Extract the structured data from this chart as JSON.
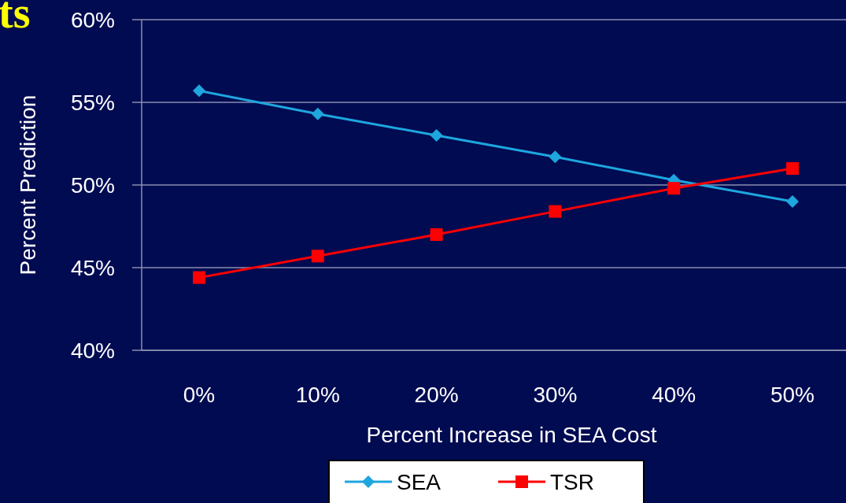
{
  "chart_data": {
    "type": "line",
    "title": "ts",
    "xlabel": "Percent Increase in SEA Cost",
    "ylabel": "Percent Prediction",
    "categories": [
      "0%",
      "10%",
      "20%",
      "30%",
      "40%",
      "50%"
    ],
    "series": [
      {
        "name": "SEA",
        "color": "#1ea6de",
        "marker": "diamond",
        "values": [
          55.7,
          54.3,
          53.0,
          51.7,
          50.3,
          49.0
        ]
      },
      {
        "name": "TSR",
        "color": "#ff0000",
        "marker": "square",
        "values": [
          44.4,
          45.7,
          47.0,
          48.4,
          49.8,
          51.0
        ]
      }
    ],
    "ylim": [
      40,
      60
    ],
    "yticks": [
      {
        "value": 40,
        "label": "40%"
      },
      {
        "value": 45,
        "label": "45%"
      },
      {
        "value": 50,
        "label": "50%"
      },
      {
        "value": 55,
        "label": "55%"
      },
      {
        "value": 60,
        "label": "60%"
      }
    ],
    "grid": "y",
    "legend": "bottom"
  }
}
